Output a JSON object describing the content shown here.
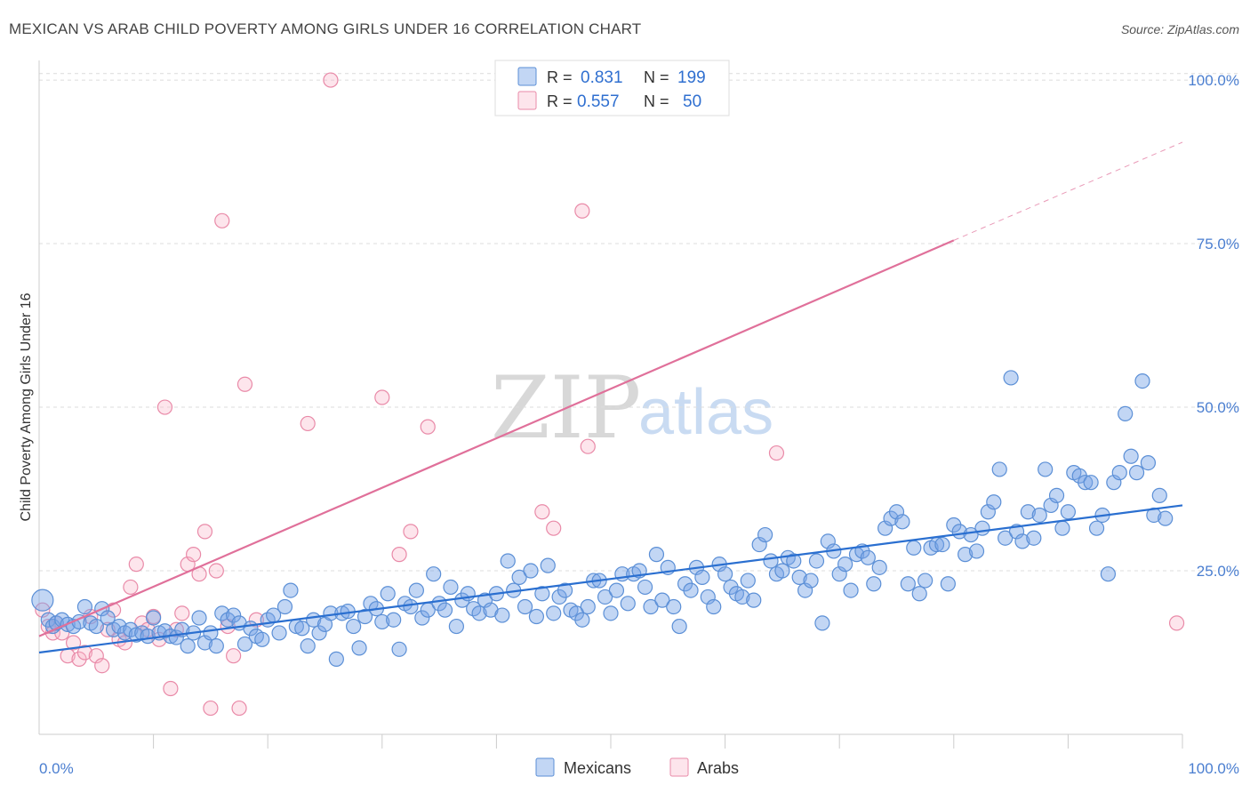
{
  "title": "MEXICAN VS ARAB CHILD POVERTY AMONG GIRLS UNDER 16 CORRELATION CHART",
  "source": "Source: ZipAtlas.com",
  "watermark": {
    "zip": "ZIP",
    "atlas": "atlas"
  },
  "colors": {
    "mexicans_fill": "rgba(120,165,230,0.45)",
    "mexicans_stroke": "#5b8fd6",
    "mexicans_line": "#2a6fd0",
    "arabs_fill": "rgba(248,180,200,0.35)",
    "arabs_stroke": "#e98aa8",
    "arabs_line": "#e0709a",
    "tick_text": "#4a7ed0"
  },
  "legend": {
    "row1": {
      "r_label": "R =",
      "r_value": "0.831",
      "n_label": "N =",
      "n_value": "199"
    },
    "row2": {
      "r_label": "R =",
      "r_value": "0.557",
      "n_label": "N =",
      "n_value": "50"
    }
  },
  "bottom_legend": {
    "mexicans": "Mexicans",
    "arabs": "Arabs"
  },
  "chart_data": {
    "type": "scatter",
    "title": "MEXICAN VS ARAB CHILD POVERTY AMONG GIRLS UNDER 16 CORRELATION CHART",
    "xlabel": "",
    "ylabel": "Child Poverty Among Girls Under 16",
    "xlim": [
      0,
      100
    ],
    "ylim": [
      0,
      103
    ],
    "x_tick_labels": [
      "0.0%",
      "100.0%"
    ],
    "y_tick_labels": [
      "25.0%",
      "50.0%",
      "75.0%",
      "100.0%"
    ],
    "y_ticks": [
      25,
      50,
      75,
      100
    ],
    "grid": "horizontal dashed",
    "legend_position": "top-center",
    "series": [
      {
        "name": "Mexicans",
        "r": 0.831,
        "n": 199,
        "trend": {
          "x": [
            0,
            100
          ],
          "y": [
            12.5,
            35.0
          ]
        },
        "points": [
          [
            0.3,
            20.5
          ],
          [
            0.8,
            17.5
          ],
          [
            1.2,
            16.5
          ],
          [
            1.5,
            17.0
          ],
          [
            2.0,
            17.5
          ],
          [
            2.5,
            16.8
          ],
          [
            3.0,
            16.5
          ],
          [
            3.5,
            17.2
          ],
          [
            4.0,
            19.5
          ],
          [
            4.5,
            17.0
          ],
          [
            5.0,
            16.5
          ],
          [
            5.5,
            19.2
          ],
          [
            6.0,
            17.8
          ],
          [
            6.5,
            16.0
          ],
          [
            7.0,
            16.5
          ],
          [
            7.5,
            15.5
          ],
          [
            8.0,
            16.0
          ],
          [
            8.5,
            15.2
          ],
          [
            9.0,
            15.5
          ],
          [
            9.5,
            15.0
          ],
          [
            10.0,
            17.8
          ],
          [
            10.5,
            15.5
          ],
          [
            11.0,
            15.8
          ],
          [
            11.5,
            15.0
          ],
          [
            12.0,
            14.8
          ],
          [
            12.5,
            16.0
          ],
          [
            13.0,
            13.5
          ],
          [
            13.5,
            15.5
          ],
          [
            14.0,
            17.8
          ],
          [
            14.5,
            14.0
          ],
          [
            15.0,
            15.5
          ],
          [
            15.5,
            13.5
          ],
          [
            16.0,
            18.5
          ],
          [
            16.5,
            17.5
          ],
          [
            17.0,
            18.2
          ],
          [
            17.5,
            17.0
          ],
          [
            18.0,
            13.8
          ],
          [
            18.5,
            16.2
          ],
          [
            19.0,
            15.0
          ],
          [
            19.5,
            14.5
          ],
          [
            20.0,
            17.5
          ],
          [
            20.5,
            18.2
          ],
          [
            21.0,
            15.5
          ],
          [
            21.5,
            19.5
          ],
          [
            22.0,
            22.0
          ],
          [
            22.5,
            16.5
          ],
          [
            23.0,
            16.2
          ],
          [
            23.5,
            13.5
          ],
          [
            24.0,
            17.5
          ],
          [
            24.5,
            15.5
          ],
          [
            25.0,
            16.8
          ],
          [
            25.5,
            18.5
          ],
          [
            26.0,
            11.5
          ],
          [
            26.5,
            18.5
          ],
          [
            27.0,
            18.8
          ],
          [
            27.5,
            16.5
          ],
          [
            28.0,
            13.2
          ],
          [
            28.5,
            18.0
          ],
          [
            29.0,
            20.0
          ],
          [
            29.5,
            19.2
          ],
          [
            30.0,
            17.2
          ],
          [
            30.5,
            21.5
          ],
          [
            31.0,
            17.5
          ],
          [
            31.5,
            13.0
          ],
          [
            32.0,
            20.0
          ],
          [
            32.5,
            19.5
          ],
          [
            33.0,
            22.0
          ],
          [
            33.5,
            17.8
          ],
          [
            34.0,
            19.0
          ],
          [
            34.5,
            24.5
          ],
          [
            35.0,
            20.0
          ],
          [
            35.5,
            19.0
          ],
          [
            36.0,
            22.5
          ],
          [
            36.5,
            16.5
          ],
          [
            37.0,
            20.5
          ],
          [
            37.5,
            21.5
          ],
          [
            38.0,
            19.2
          ],
          [
            38.5,
            18.5
          ],
          [
            39.0,
            20.5
          ],
          [
            39.5,
            19.0
          ],
          [
            40.0,
            21.5
          ],
          [
            40.5,
            18.2
          ],
          [
            41.0,
            26.5
          ],
          [
            41.5,
            22.0
          ],
          [
            42.0,
            24.0
          ],
          [
            42.5,
            19.5
          ],
          [
            43.0,
            25.0
          ],
          [
            43.5,
            18.0
          ],
          [
            44.0,
            21.5
          ],
          [
            44.5,
            25.8
          ],
          [
            45.0,
            18.5
          ],
          [
            45.5,
            21.0
          ],
          [
            46.0,
            22.0
          ],
          [
            46.5,
            19.0
          ],
          [
            47.0,
            18.5
          ],
          [
            47.5,
            17.5
          ],
          [
            48.0,
            19.5
          ],
          [
            48.5,
            23.5
          ],
          [
            49.0,
            23.5
          ],
          [
            49.5,
            21.0
          ],
          [
            50.0,
            18.5
          ],
          [
            50.5,
            22.0
          ],
          [
            51.0,
            24.5
          ],
          [
            51.5,
            20.0
          ],
          [
            52.0,
            24.5
          ],
          [
            52.5,
            25.0
          ],
          [
            53.0,
            22.5
          ],
          [
            53.5,
            19.5
          ],
          [
            54.0,
            27.5
          ],
          [
            54.5,
            20.5
          ],
          [
            55.0,
            25.5
          ],
          [
            55.5,
            19.5
          ],
          [
            56.0,
            16.5
          ],
          [
            56.5,
            23.0
          ],
          [
            57.0,
            22.0
          ],
          [
            57.5,
            25.5
          ],
          [
            58.0,
            24.0
          ],
          [
            58.5,
            21.0
          ],
          [
            59.0,
            19.5
          ],
          [
            59.5,
            26.0
          ],
          [
            60.0,
            24.5
          ],
          [
            60.5,
            22.5
          ],
          [
            61.0,
            21.5
          ],
          [
            61.5,
            21.0
          ],
          [
            62.0,
            23.5
          ],
          [
            62.5,
            20.5
          ],
          [
            63.0,
            29.0
          ],
          [
            63.5,
            30.5
          ],
          [
            64.0,
            26.5
          ],
          [
            64.5,
            24.5
          ],
          [
            65.0,
            25.0
          ],
          [
            65.5,
            27.0
          ],
          [
            66.0,
            26.5
          ],
          [
            66.5,
            24.0
          ],
          [
            67.0,
            22.0
          ],
          [
            67.5,
            23.5
          ],
          [
            68.0,
            26.5
          ],
          [
            68.5,
            17.0
          ],
          [
            69.0,
            29.5
          ],
          [
            69.5,
            28.0
          ],
          [
            70.0,
            24.5
          ],
          [
            70.5,
            26.0
          ],
          [
            71.0,
            22.0
          ],
          [
            71.5,
            27.5
          ],
          [
            72.0,
            28.0
          ],
          [
            72.5,
            27.0
          ],
          [
            73.0,
            23.0
          ],
          [
            73.5,
            25.5
          ],
          [
            74.0,
            31.5
          ],
          [
            74.5,
            33.0
          ],
          [
            75.0,
            34.0
          ],
          [
            75.5,
            32.5
          ],
          [
            76.0,
            23.0
          ],
          [
            76.5,
            28.5
          ],
          [
            77.0,
            21.5
          ],
          [
            77.5,
            23.5
          ],
          [
            78.0,
            28.5
          ],
          [
            78.5,
            29.0
          ],
          [
            79.0,
            29.0
          ],
          [
            79.5,
            23.0
          ],
          [
            80.0,
            32.0
          ],
          [
            80.5,
            31.0
          ],
          [
            81.0,
            27.5
          ],
          [
            81.5,
            30.5
          ],
          [
            82.0,
            28.0
          ],
          [
            82.5,
            31.5
          ],
          [
            83.0,
            34.0
          ],
          [
            83.5,
            35.5
          ],
          [
            84.0,
            40.5
          ],
          [
            84.5,
            30.0
          ],
          [
            85.0,
            54.5
          ],
          [
            85.5,
            31.0
          ],
          [
            86.0,
            29.5
          ],
          [
            86.5,
            34.0
          ],
          [
            87.0,
            30.0
          ],
          [
            87.5,
            33.5
          ],
          [
            88.0,
            40.5
          ],
          [
            88.5,
            35.0
          ],
          [
            89.0,
            36.5
          ],
          [
            89.5,
            31.5
          ],
          [
            90.0,
            34.0
          ],
          [
            90.5,
            40.0
          ],
          [
            91.0,
            39.5
          ],
          [
            91.5,
            38.5
          ],
          [
            92.0,
            38.5
          ],
          [
            92.5,
            31.5
          ],
          [
            93.0,
            33.5
          ],
          [
            93.5,
            24.5
          ],
          [
            94.0,
            38.5
          ],
          [
            94.5,
            40.0
          ],
          [
            95.0,
            49.0
          ],
          [
            95.5,
            42.5
          ],
          [
            96.0,
            40.0
          ],
          [
            96.5,
            54.0
          ],
          [
            97.0,
            41.5
          ],
          [
            97.5,
            33.5
          ],
          [
            98.0,
            36.5
          ],
          [
            98.5,
            33.0
          ]
        ]
      },
      {
        "name": "Arabs",
        "r": 0.557,
        "n": 50,
        "trend": {
          "x": [
            0,
            80
          ],
          "y": [
            15.0,
            75.5
          ]
        },
        "trend_dashed_extension": {
          "x": [
            80,
            100
          ],
          "y": [
            75.5,
            90.5
          ]
        },
        "points": [
          [
            0.3,
            19.0
          ],
          [
            0.8,
            16.5
          ],
          [
            1.2,
            15.5
          ],
          [
            1.5,
            17.0
          ],
          [
            2.0,
            15.5
          ],
          [
            2.5,
            12.0
          ],
          [
            3.0,
            14.0
          ],
          [
            3.5,
            11.5
          ],
          [
            4.0,
            12.5
          ],
          [
            4.5,
            18.0
          ],
          [
            5.0,
            12.0
          ],
          [
            5.5,
            10.5
          ],
          [
            6.0,
            16.0
          ],
          [
            6.5,
            19.0
          ],
          [
            7.0,
            14.5
          ],
          [
            7.5,
            14.0
          ],
          [
            8.0,
            22.5
          ],
          [
            8.5,
            26.0
          ],
          [
            9.0,
            17.0
          ],
          [
            9.5,
            16.0
          ],
          [
            10.0,
            18.0
          ],
          [
            10.5,
            14.5
          ],
          [
            11.0,
            50.0
          ],
          [
            11.5,
            7.0
          ],
          [
            12.0,
            16.0
          ],
          [
            12.5,
            18.5
          ],
          [
            13.0,
            26.0
          ],
          [
            13.5,
            27.5
          ],
          [
            14.0,
            24.5
          ],
          [
            14.5,
            31.0
          ],
          [
            15.0,
            4.0
          ],
          [
            15.5,
            25.0
          ],
          [
            16.0,
            78.5
          ],
          [
            16.5,
            16.5
          ],
          [
            17.0,
            12.0
          ],
          [
            17.5,
            4.0
          ],
          [
            18.0,
            53.5
          ],
          [
            19.0,
            17.5
          ],
          [
            23.5,
            47.5
          ],
          [
            25.5,
            100.0
          ],
          [
            30.0,
            51.5
          ],
          [
            31.5,
            27.5
          ],
          [
            32.5,
            31.0
          ],
          [
            34.0,
            47.0
          ],
          [
            44.0,
            34.0
          ],
          [
            45.0,
            31.5
          ],
          [
            47.5,
            80.0
          ],
          [
            48.0,
            44.0
          ],
          [
            64.5,
            43.0
          ],
          [
            99.5,
            17.0
          ]
        ]
      }
    ]
  }
}
